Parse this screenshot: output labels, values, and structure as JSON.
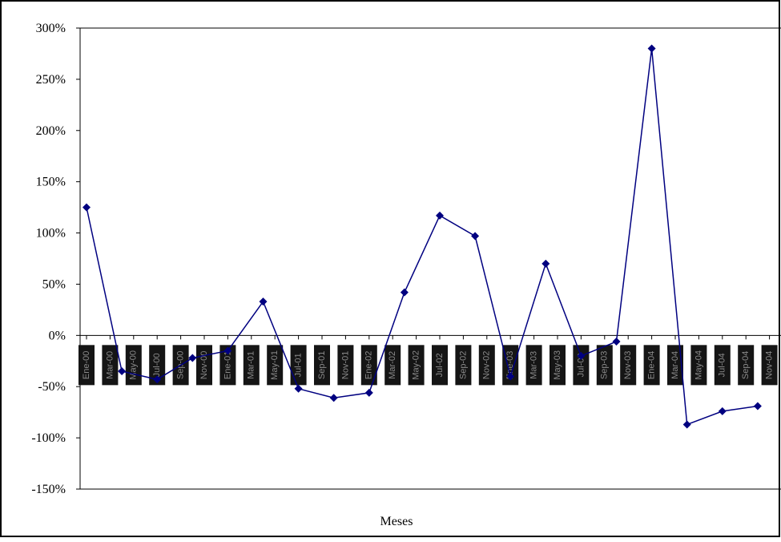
{
  "chart_data": {
    "type": "line",
    "x_label": "Meses",
    "categories": [
      "Ene-00",
      null,
      "Mar-00",
      null,
      "May-00",
      null,
      "Jul-00",
      null,
      "Sep-00",
      null,
      "Nov-00",
      null,
      "Ene-01",
      null,
      "Mar-01",
      null,
      "May-01",
      null,
      "Jul-01",
      null,
      "Sep-01",
      null,
      "Nov-01",
      null,
      "Ene-02",
      null,
      "Mar-02",
      null,
      "May-02",
      null,
      "Jul-02",
      null,
      "Sep-02",
      null,
      "Nov-02",
      null,
      "Ene-03",
      null,
      "Mar-03",
      null,
      "May-03",
      null,
      "Jul-03",
      null,
      "Sep-03",
      null,
      "Nov-03",
      null,
      "Ene-04",
      null,
      "Mar-04",
      null,
      "May-04",
      null,
      "Jul-04",
      null,
      "Sep-04",
      null,
      "Nov-04",
      null
    ],
    "series": [
      {
        "color": "#000080",
        "values": [
          125,
          null,
          null,
          -35,
          null,
          null,
          -43,
          null,
          null,
          -22,
          null,
          null,
          -15,
          null,
          null,
          33,
          null,
          null,
          -52,
          null,
          null,
          -61,
          null,
          null,
          -56,
          null,
          null,
          42,
          null,
          null,
          117,
          null,
          null,
          97,
          null,
          null,
          -40,
          null,
          null,
          70,
          null,
          null,
          -20,
          null,
          null,
          -6,
          null,
          null,
          280,
          null,
          null,
          -87,
          null,
          null,
          -74,
          null,
          null,
          -69,
          null,
          null
        ]
      }
    ],
    "span_gaps": true,
    "ylim": [
      -150,
      300
    ],
    "yticks": [
      {
        "value": -150,
        "label": "-150%"
      },
      {
        "value": -100,
        "label": "-100%"
      },
      {
        "value": -50,
        "label": "-50%"
      },
      {
        "value": 0,
        "label": "0%"
      },
      {
        "value": 50,
        "label": "50%"
      },
      {
        "value": 100,
        "label": "100%"
      },
      {
        "value": 150,
        "label": "150%"
      },
      {
        "value": 200,
        "label": "200%"
      },
      {
        "value": 250,
        "label": "250%"
      },
      {
        "value": 300,
        "label": "300%"
      }
    ],
    "grid": false
  }
}
